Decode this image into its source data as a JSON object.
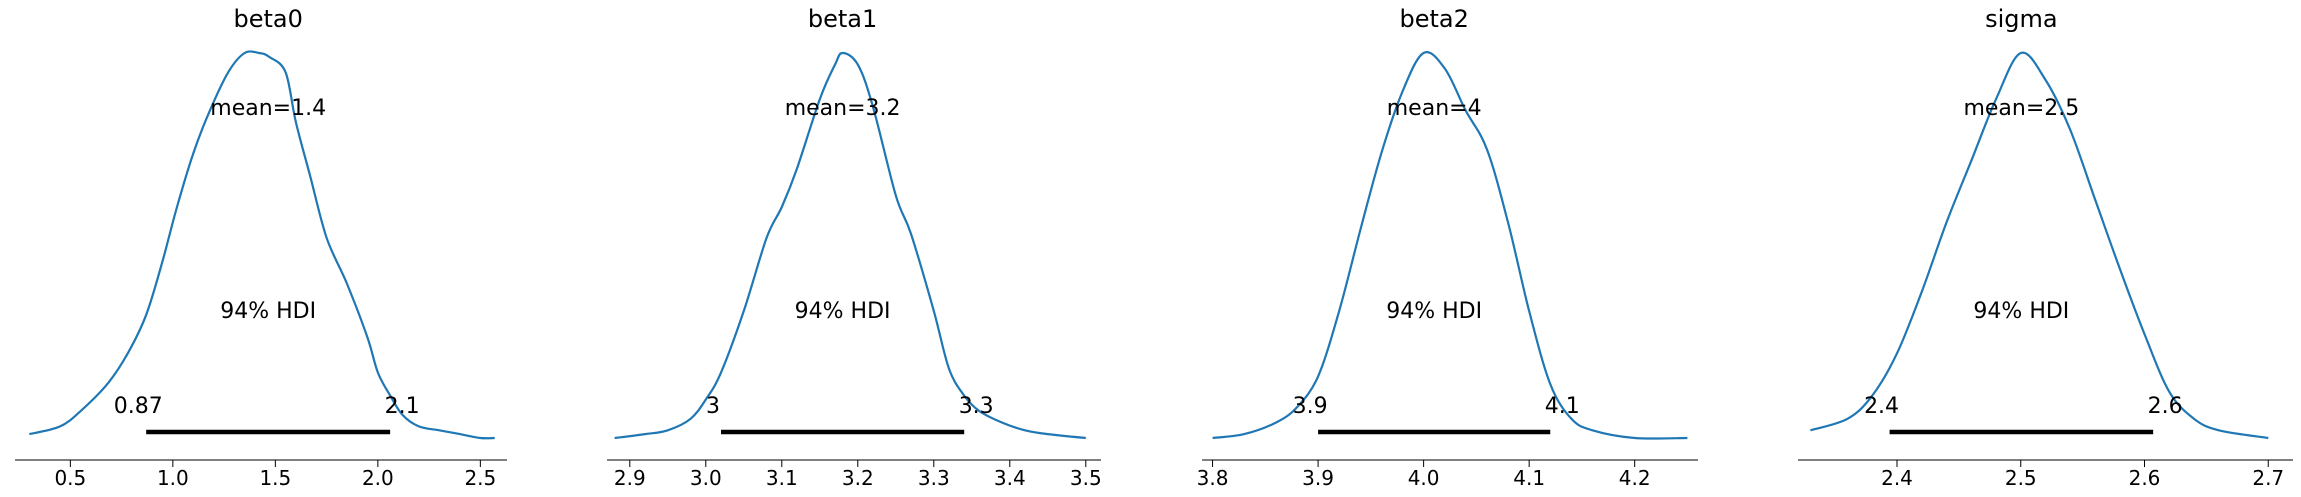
{
  "chart_data": [
    {
      "type": "line",
      "title": "beta0",
      "mean_label": "mean=1.4",
      "hdi_label": "94% HDI",
      "hdi": [
        0.87,
        2.06
      ],
      "hdi_low_label": "0.87",
      "hdi_high_label": "2.1",
      "xlim": [
        0.23,
        2.63
      ],
      "xticks": [
        0.5,
        1.0,
        1.5,
        2.0,
        2.5
      ],
      "xtick_labels": [
        "0.5",
        "1.0",
        "1.5",
        "2.0",
        "2.5"
      ],
      "x": [
        0.3,
        0.45,
        0.55,
        0.68,
        0.78,
        0.87,
        0.95,
        1.02,
        1.1,
        1.18,
        1.27,
        1.35,
        1.42,
        1.47,
        1.55,
        1.6,
        1.67,
        1.75,
        1.85,
        1.95,
        2.0,
        2.06,
        2.12,
        2.2,
        2.3,
        2.4,
        2.5,
        2.57
      ],
      "density": [
        0.01,
        0.03,
        0.07,
        0.14,
        0.22,
        0.32,
        0.46,
        0.6,
        0.74,
        0.85,
        0.95,
        1.0,
        1.0,
        0.99,
        0.95,
        0.82,
        0.68,
        0.52,
        0.4,
        0.26,
        0.17,
        0.11,
        0.06,
        0.03,
        0.02,
        0.01,
        0.0,
        0.0
      ]
    },
    {
      "type": "line",
      "title": "beta1",
      "mean_label": "mean=3.2",
      "hdi_label": "94% HDI",
      "hdi": [
        3.02,
        3.34
      ],
      "hdi_low_label": "3",
      "hdi_high_label": "3.3",
      "xlim": [
        2.87,
        3.52
      ],
      "xticks": [
        2.9,
        3.0,
        3.1,
        3.2,
        3.3,
        3.4,
        3.5
      ],
      "xtick_labels": [
        "2.9",
        "3.0",
        "3.1",
        "3.2",
        "3.3",
        "3.4",
        "3.5"
      ],
      "x": [
        2.88,
        2.92,
        2.95,
        2.98,
        3.0,
        3.02,
        3.05,
        3.08,
        3.1,
        3.12,
        3.15,
        3.17,
        3.18,
        3.2,
        3.22,
        3.25,
        3.27,
        3.3,
        3.32,
        3.34,
        3.36,
        3.39,
        3.42,
        3.45,
        3.5
      ],
      "density": [
        0.0,
        0.01,
        0.02,
        0.05,
        0.1,
        0.17,
        0.33,
        0.52,
        0.6,
        0.7,
        0.88,
        0.97,
        1.0,
        0.97,
        0.86,
        0.63,
        0.53,
        0.33,
        0.18,
        0.11,
        0.07,
        0.04,
        0.02,
        0.01,
        0.0
      ]
    },
    {
      "type": "line",
      "title": "beta2",
      "mean_label": "mean=4",
      "hdi_label": "94% HDI",
      "hdi": [
        3.9,
        4.12
      ],
      "hdi_low_label": "3.9",
      "hdi_high_label": "4.1",
      "xlim": [
        3.79,
        4.26
      ],
      "xticks": [
        3.8,
        3.9,
        4.0,
        4.1,
        4.2
      ],
      "xtick_labels": [
        "3.8",
        "3.9",
        "4.0",
        "4.1",
        "4.2"
      ],
      "x": [
        3.8,
        3.83,
        3.86,
        3.88,
        3.9,
        3.92,
        3.94,
        3.96,
        3.98,
        4.0,
        4.02,
        4.04,
        4.06,
        4.08,
        4.1,
        4.12,
        4.14,
        4.16,
        4.2,
        4.25
      ],
      "density": [
        0.0,
        0.01,
        0.04,
        0.08,
        0.16,
        0.33,
        0.54,
        0.74,
        0.9,
        1.0,
        0.96,
        0.85,
        0.75,
        0.56,
        0.33,
        0.14,
        0.05,
        0.02,
        0.0,
        0.0
      ]
    },
    {
      "type": "line",
      "title": "sigma",
      "mean_label": "mean=2.5",
      "hdi_label": "94% HDI",
      "hdi": [
        2.394,
        2.607
      ],
      "hdi_low_label": "2.4",
      "hdi_high_label": "2.6",
      "xlim": [
        2.32,
        2.72
      ],
      "xticks": [
        2.4,
        2.5,
        2.6,
        2.7
      ],
      "xtick_labels": [
        "2.4",
        "2.5",
        "2.6",
        "2.7"
      ],
      "x": [
        2.33,
        2.36,
        2.38,
        2.4,
        2.42,
        2.44,
        2.46,
        2.48,
        2.5,
        2.52,
        2.54,
        2.56,
        2.58,
        2.6,
        2.62,
        2.64,
        2.66,
        2.7
      ],
      "density": [
        0.02,
        0.05,
        0.11,
        0.22,
        0.38,
        0.56,
        0.72,
        0.88,
        1.0,
        0.93,
        0.8,
        0.62,
        0.44,
        0.27,
        0.12,
        0.05,
        0.02,
        0.0
      ]
    }
  ]
}
